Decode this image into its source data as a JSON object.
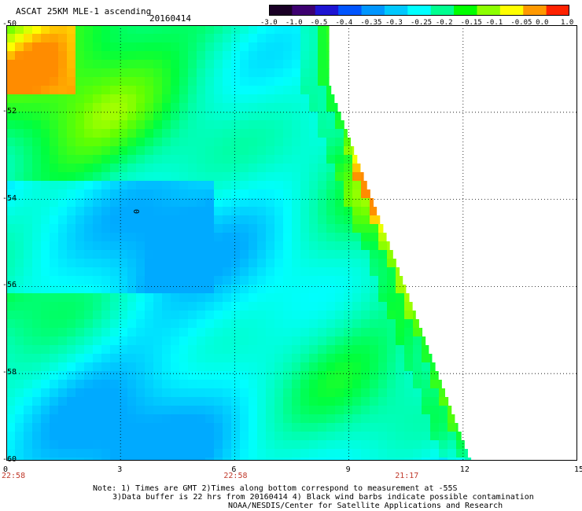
{
  "header": {
    "title": "ASCAT 25KM MLE-1 ascending",
    "date": "20160414"
  },
  "colorbar": {
    "labels": [
      "-3.0",
      "-1.0",
      "-0.5",
      "-0.4",
      "-0.35",
      "-0.3",
      "-0.25",
      "-0.2",
      "-0.15",
      "-0.1",
      "-0.05",
      "0.0",
      "1.0"
    ],
    "colors": [
      "#1a0026",
      "#3d0070",
      "#1e14d2",
      "#0055ff",
      "#0096ff",
      "#00c8ff",
      "#00ffff",
      "#00ff90",
      "#00ff00",
      "#8cff00",
      "#ffff00",
      "#ff9900",
      "#ff2200"
    ]
  },
  "axes": {
    "y_ticks": [
      "-50",
      "-52",
      "-54",
      "-56",
      "-58",
      "-60"
    ],
    "x_ticks": [
      "0",
      "3",
      "6",
      "9",
      "12",
      "15"
    ],
    "time_labels": [
      "22:58",
      "22:58",
      "21:17"
    ]
  },
  "map": {
    "lat_range": [
      -60,
      -50
    ],
    "x_range": [
      0,
      15
    ],
    "marker": "0"
  },
  "notes": [
    "Note: 1) Times are GMT 2)Times along bottom correspond to measurement at -55S",
    "3)Data buffer is 22 hrs from 20160414 4) Black wind barbs indicate possible contamination",
    "NOAA/NESDIS/Center for Satellite Applications and Research"
  ]
}
